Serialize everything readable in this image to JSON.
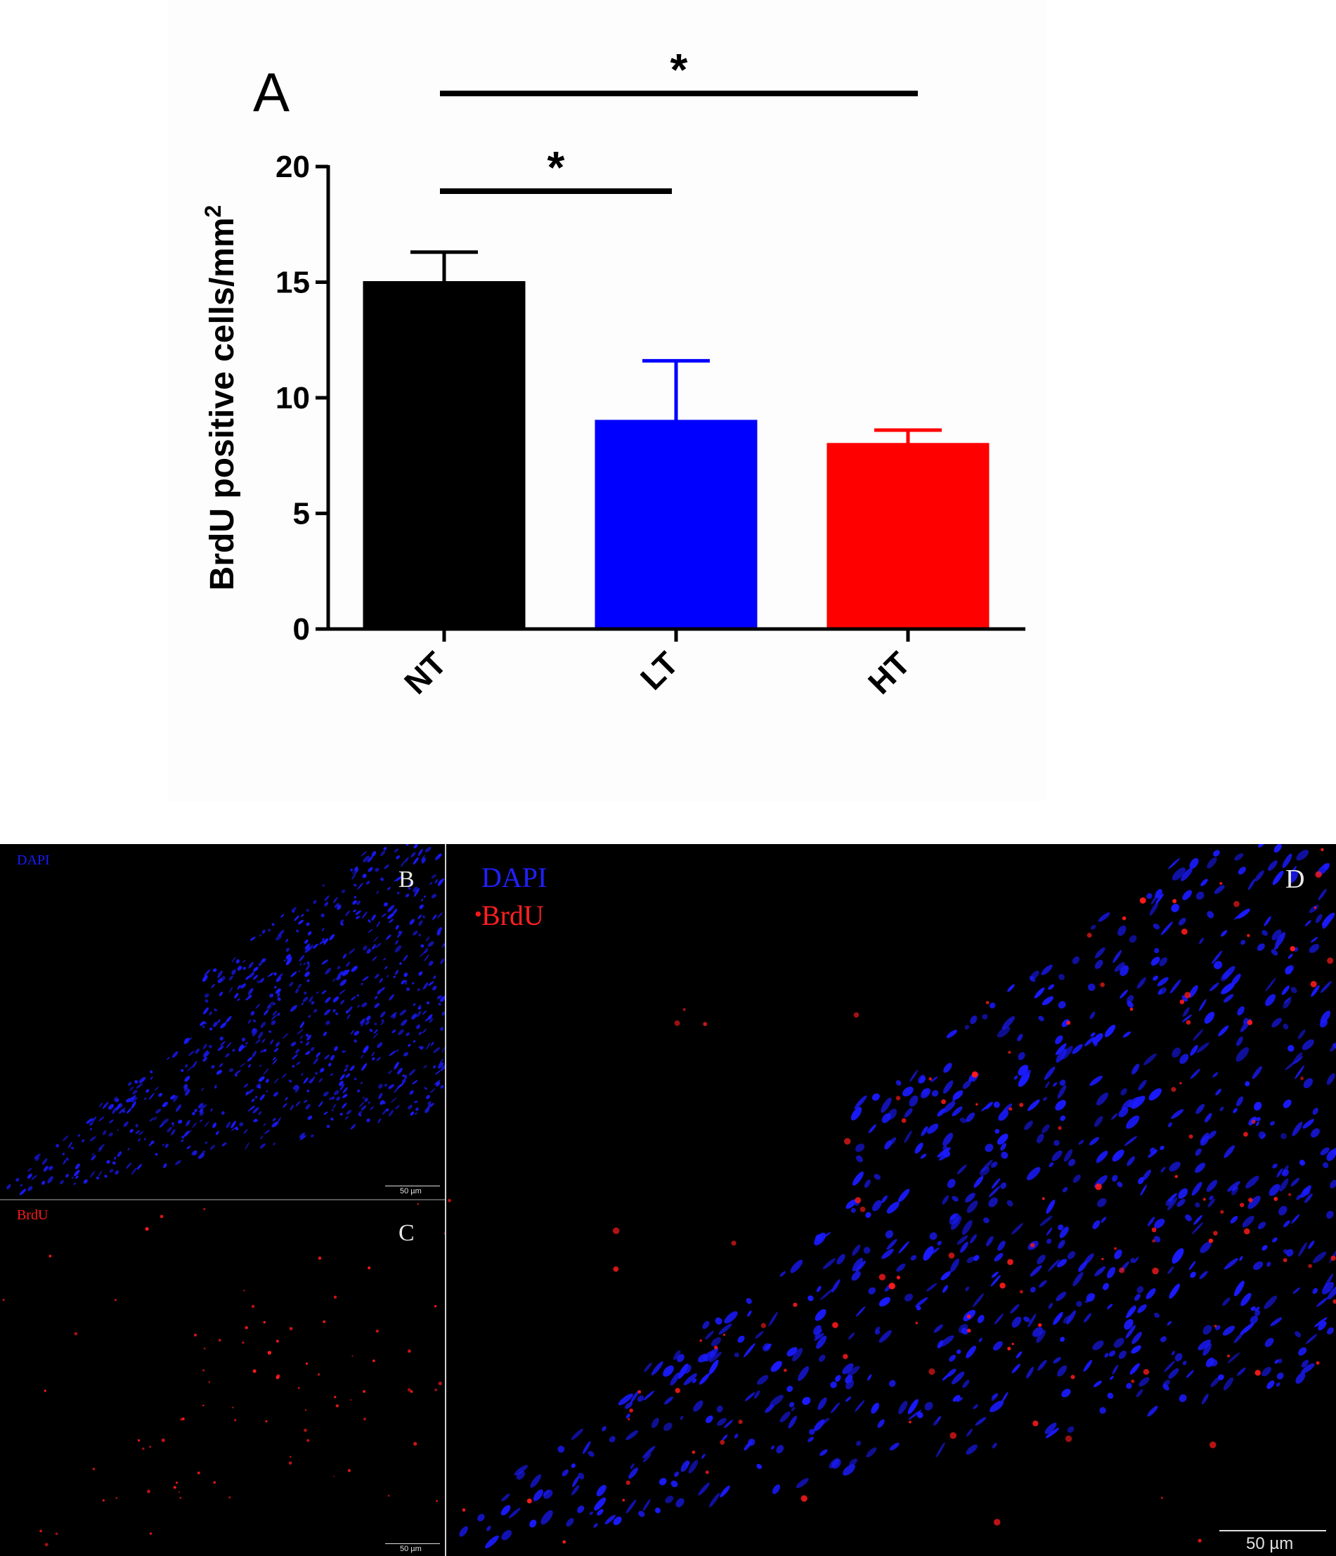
{
  "chart_data": {
    "type": "bar",
    "panel_label": "A",
    "categories": [
      "NT",
      "LT",
      "HT"
    ],
    "values": [
      15.0,
      9.0,
      8.0
    ],
    "errors": [
      1.3,
      2.6,
      0.6
    ],
    "colors": [
      "#000000",
      "#0000ff",
      "#ff0000"
    ],
    "ylabel": "BrdU positive cells/mm",
    "ylabel_superscript": "2",
    "ylim": [
      0,
      20
    ],
    "yticks": [
      "0",
      "5",
      "10",
      "15",
      "20"
    ],
    "significance": [
      {
        "from": "NT",
        "to": "HT",
        "symbol": "*"
      },
      {
        "from": "NT",
        "to": "LT",
        "symbol": "*"
      }
    ],
    "grid": false,
    "legend": "none"
  },
  "micrographs": {
    "panel_b": {
      "letter": "B",
      "channel": "DAPI",
      "channel_color": "#1a1aff",
      "scale": "50 µm"
    },
    "panel_c": {
      "letter": "C",
      "channel": "BrdU",
      "channel_color": "#ff1a1a",
      "scale": "50 µm"
    },
    "panel_d": {
      "letter": "D",
      "channels": [
        {
          "label": "DAPI",
          "color": "#2020ff"
        },
        {
          "label": "BrdU",
          "color": "#ff2020"
        }
      ],
      "scale": "50 µm"
    }
  }
}
